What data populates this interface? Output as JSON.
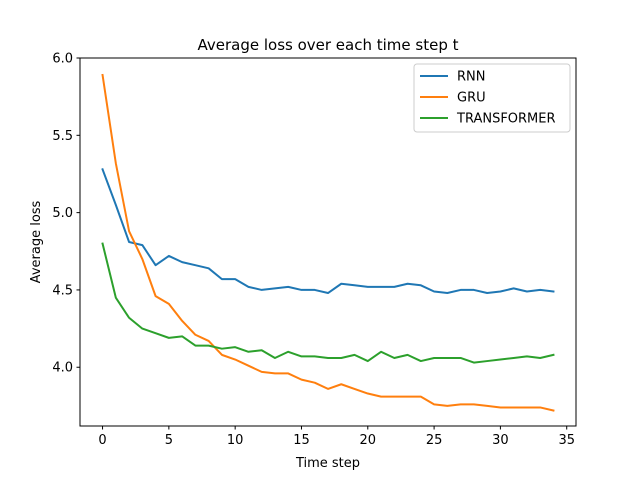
{
  "chart_data": {
    "type": "line",
    "title": "Average loss over each time step t",
    "xlabel": "Time step",
    "ylabel": "Average loss",
    "xlim": [
      -1.7,
      35.7
    ],
    "ylim": [
      3.62,
      6.0
    ],
    "xticks": [
      0,
      5,
      10,
      15,
      20,
      25,
      30,
      35
    ],
    "yticks": [
      4.0,
      4.5,
      5.0,
      5.5,
      6.0
    ],
    "ytick_labels": [
      "4.0",
      "4.5",
      "5.0",
      "5.5",
      "6.0"
    ],
    "legend_position": "top-right",
    "grid": false,
    "x": [
      0,
      1,
      2,
      3,
      4,
      5,
      6,
      7,
      8,
      9,
      10,
      11,
      12,
      13,
      14,
      15,
      16,
      17,
      18,
      19,
      20,
      21,
      22,
      23,
      24,
      25,
      26,
      27,
      28,
      29,
      30,
      31,
      32,
      33,
      34
    ],
    "series": [
      {
        "name": "RNN",
        "color": "#1f77b4",
        "values": [
          5.28,
          5.05,
          4.81,
          4.79,
          4.66,
          4.72,
          4.68,
          4.66,
          4.64,
          4.57,
          4.57,
          4.52,
          4.5,
          4.51,
          4.52,
          4.5,
          4.5,
          4.48,
          4.54,
          4.53,
          4.52,
          4.52,
          4.52,
          4.54,
          4.53,
          4.49,
          4.48,
          4.5,
          4.5,
          4.48,
          4.49,
          4.51,
          4.49,
          4.5,
          4.49
        ]
      },
      {
        "name": "GRU",
        "color": "#ff7f0e",
        "values": [
          5.89,
          5.32,
          4.88,
          4.7,
          4.46,
          4.41,
          4.3,
          4.21,
          4.17,
          4.08,
          4.05,
          4.01,
          3.97,
          3.96,
          3.96,
          3.92,
          3.9,
          3.86,
          3.89,
          3.86,
          3.83,
          3.81,
          3.81,
          3.81,
          3.81,
          3.76,
          3.75,
          3.76,
          3.76,
          3.75,
          3.74,
          3.74,
          3.74,
          3.74,
          3.72
        ]
      },
      {
        "name": "TRANSFORMER",
        "color": "#2ca02c",
        "values": [
          4.8,
          4.45,
          4.32,
          4.25,
          4.22,
          4.19,
          4.2,
          4.14,
          4.14,
          4.12,
          4.13,
          4.1,
          4.11,
          4.06,
          4.1,
          4.07,
          4.07,
          4.06,
          4.06,
          4.08,
          4.04,
          4.1,
          4.06,
          4.08,
          4.04,
          4.06,
          4.06,
          4.06,
          4.03,
          4.04,
          4.05,
          4.06,
          4.07,
          4.06,
          4.08
        ]
      }
    ]
  }
}
